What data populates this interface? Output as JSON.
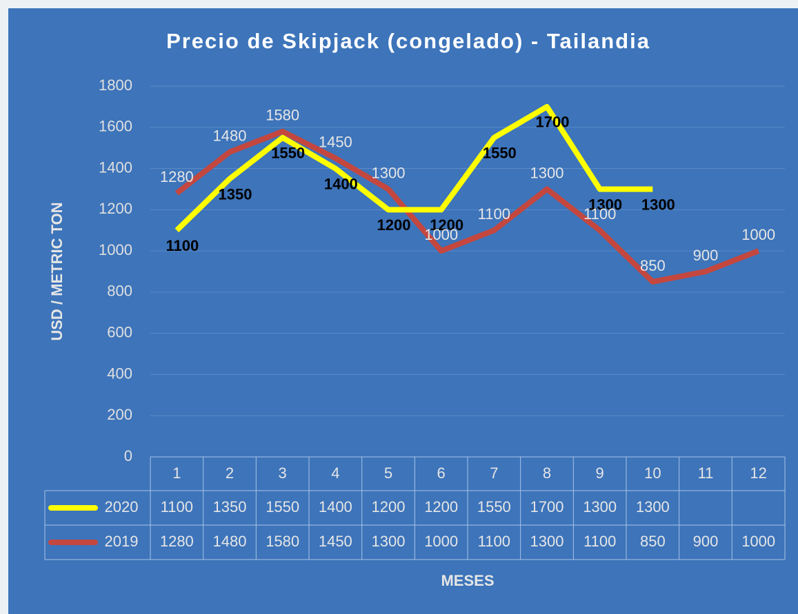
{
  "chart_data": {
    "type": "line",
    "title": "Precio de Skipjack (congelado) - Tailandia",
    "x_label": "MESES",
    "y_label": "USD / METRIC TON",
    "categories": [
      "1",
      "2",
      "3",
      "4",
      "5",
      "6",
      "7",
      "8",
      "9",
      "10",
      "11",
      "12"
    ],
    "series": [
      {
        "name": "2020",
        "color": "#ffff00",
        "label_color": "#000000",
        "values": [
          1100,
          1350,
          1550,
          1400,
          1200,
          1200,
          1550,
          1700,
          1300,
          1300,
          null,
          null
        ]
      },
      {
        "name": "2019",
        "color": "#c4473f",
        "label_color": "#e6e6e6",
        "values": [
          1280,
          1480,
          1580,
          1450,
          1300,
          1000,
          1100,
          1300,
          1100,
          850,
          900,
          1000
        ]
      }
    ],
    "ylim": [
      0,
      1800
    ],
    "yticks": [
      0,
      200,
      400,
      600,
      800,
      1000,
      1200,
      1400,
      1600,
      1800
    ],
    "grid": true,
    "data_table": true
  }
}
